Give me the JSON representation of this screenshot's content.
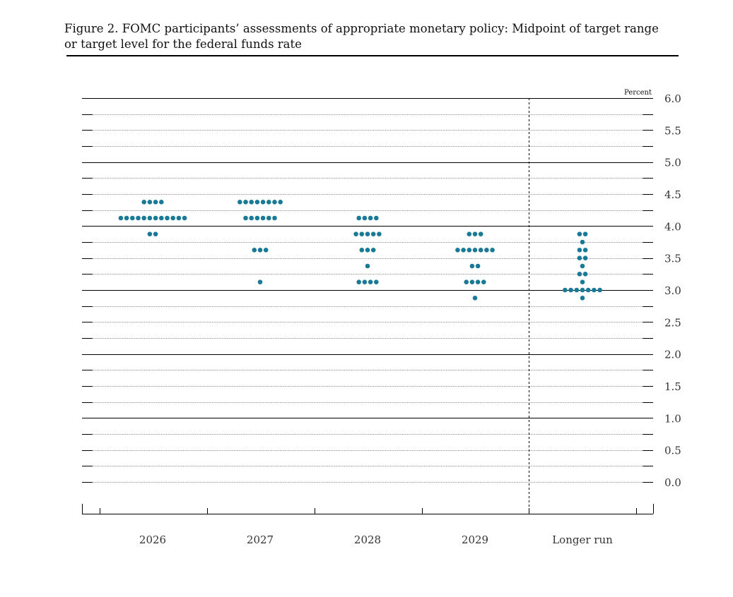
{
  "figure": {
    "title_line1": "Figure 2. FOMC participants’ assessments of appropriate monetary policy: Midpoint of target range",
    "title_line2": "or target level for the federal funds rate"
  },
  "chart_data": {
    "type": "scatter",
    "subtype": "dot-plot",
    "ylabel": "Percent",
    "ylim": [
      0,
      6
    ],
    "ytick_labels": [
      "6.0",
      "5.5",
      "5.0",
      "4.5",
      "4.0",
      "3.5",
      "3.0",
      "2.5",
      "2.0",
      "1.5",
      "1.0",
      "0.5",
      "0.0"
    ],
    "categories": [
      "2026",
      "2027",
      "2028",
      "2029",
      "Longer run"
    ],
    "dot_color": "#1a7a96",
    "columns": [
      {
        "category": "2026",
        "dots": [
          {
            "rate": 4.375,
            "count": 4
          },
          {
            "rate": 4.125,
            "count": 12
          },
          {
            "rate": 3.875,
            "count": 2
          }
        ]
      },
      {
        "category": "2027",
        "dots": [
          {
            "rate": 4.375,
            "count": 8
          },
          {
            "rate": 4.125,
            "count": 6
          },
          {
            "rate": 3.625,
            "count": 3
          },
          {
            "rate": 3.125,
            "count": 1
          }
        ]
      },
      {
        "category": "2028",
        "dots": [
          {
            "rate": 4.125,
            "count": 4
          },
          {
            "rate": 3.875,
            "count": 5
          },
          {
            "rate": 3.625,
            "count": 3
          },
          {
            "rate": 3.375,
            "count": 1
          },
          {
            "rate": 3.125,
            "count": 4
          }
        ]
      },
      {
        "category": "2029",
        "dots": [
          {
            "rate": 3.875,
            "count": 3
          },
          {
            "rate": 3.625,
            "count": 7
          },
          {
            "rate": 3.375,
            "count": 2
          },
          {
            "rate": 3.125,
            "count": 4
          },
          {
            "rate": 2.875,
            "count": 1
          }
        ]
      },
      {
        "category": "Longer run",
        "dots": [
          {
            "rate": 3.875,
            "count": 2
          },
          {
            "rate": 3.75,
            "count": 1
          },
          {
            "rate": 3.625,
            "count": 2
          },
          {
            "rate": 3.5,
            "count": 2
          },
          {
            "rate": 3.375,
            "count": 1
          },
          {
            "rate": 3.25,
            "count": 2
          },
          {
            "rate": 3.125,
            "count": 1
          },
          {
            "rate": 3.0,
            "count": 7
          },
          {
            "rate": 2.875,
            "count": 1
          }
        ]
      }
    ]
  }
}
